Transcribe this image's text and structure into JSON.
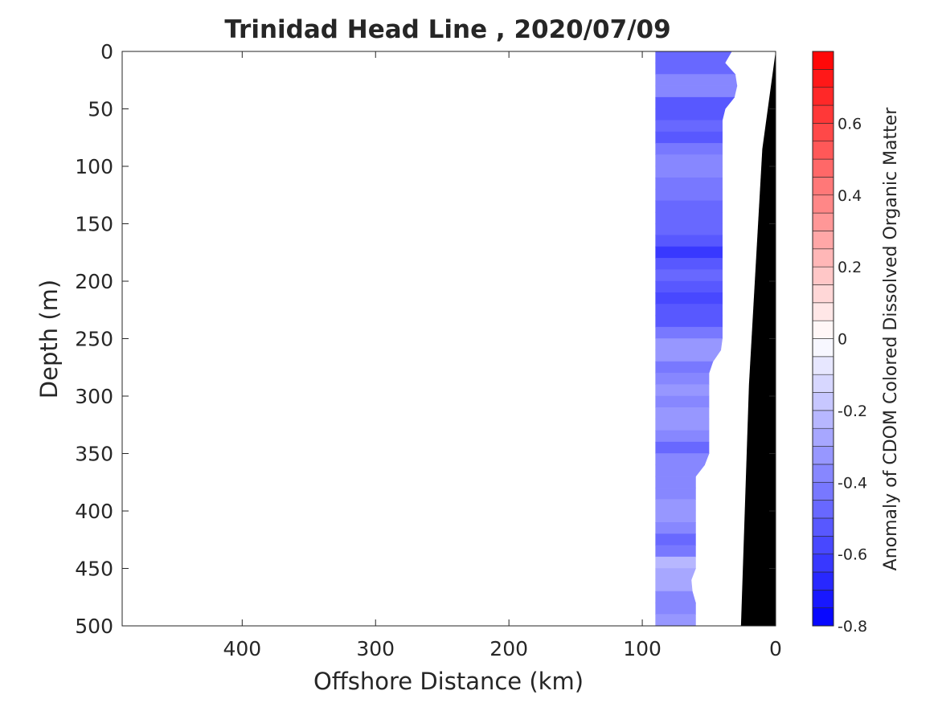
{
  "chart_data": {
    "type": "heatmap",
    "title": "Trinidad Head Line , 2020/07/09",
    "xlabel": "Offshore Distance (km)",
    "ylabel": "Depth (m)",
    "colorbar_label": "Anomaly of CDOM Colored Dissolved Organic Matter",
    "xlim": [
      490,
      0
    ],
    "ylim": [
      0,
      500
    ],
    "x_ticks": [
      400,
      300,
      200,
      100,
      0
    ],
    "y_ticks": [
      0,
      50,
      100,
      150,
      200,
      250,
      300,
      350,
      400,
      450,
      500
    ],
    "colorbar_range": [
      -0.8,
      0.8
    ],
    "colorbar_ticks": [
      0.6,
      0.4,
      0.2,
      0,
      -0.2,
      -0.4,
      -0.6,
      -0.8
    ],
    "colorbar_levels": 32,
    "colors": {
      "negative": "#0000ff",
      "positive": "#ff0000",
      "zero": "#ffffff",
      "bathymetry": "#000000"
    },
    "data_region_boundary": [
      {
        "depth": 0,
        "x_offshore": 90,
        "x_onshore": 33
      },
      {
        "depth": 10,
        "x_offshore": 90,
        "x_onshore": 38
      },
      {
        "depth": 15,
        "x_offshore": 90,
        "x_onshore": 31
      },
      {
        "depth": 30,
        "x_offshore": 90,
        "x_onshore": 29
      },
      {
        "depth": 35,
        "x_offshore": 90,
        "x_onshore": 38
      },
      {
        "depth": 40,
        "x_offshore": 90,
        "x_onshore": 31
      },
      {
        "depth": 48,
        "x_offshore": 90,
        "x_onshore": 37
      },
      {
        "depth": 55,
        "x_offshore": 90,
        "x_onshore": 40
      },
      {
        "depth": 258,
        "x_offshore": 90,
        "x_onshore": 40
      },
      {
        "depth": 275,
        "x_offshore": 90,
        "x_onshore": 50
      },
      {
        "depth": 355,
        "x_offshore": 90,
        "x_onshore": 50
      },
      {
        "depth": 370,
        "x_offshore": 90,
        "x_onshore": 60
      },
      {
        "depth": 450,
        "x_offshore": 90,
        "x_onshore": 60
      },
      {
        "depth": 465,
        "x_offshore": 90,
        "x_onshore": 65
      },
      {
        "depth": 475,
        "x_offshore": 90,
        "x_onshore": 60
      },
      {
        "depth": 500,
        "x_offshore": 90,
        "x_onshore": 60
      }
    ],
    "anomaly_profile": [
      {
        "depth": 0,
        "value": -0.45
      },
      {
        "depth": 10,
        "value": -0.55
      },
      {
        "depth": 20,
        "value": -0.4
      },
      {
        "depth": 30,
        "value": -0.35
      },
      {
        "depth": 40,
        "value": -0.45
      },
      {
        "depth": 50,
        "value": -0.6
      },
      {
        "depth": 60,
        "value": -0.45
      },
      {
        "depth": 70,
        "value": -0.55
      },
      {
        "depth": 80,
        "value": -0.5
      },
      {
        "depth": 90,
        "value": -0.4
      },
      {
        "depth": 100,
        "value": -0.35
      },
      {
        "depth": 110,
        "value": -0.45
      },
      {
        "depth": 120,
        "value": -0.4
      },
      {
        "depth": 130,
        "value": -0.45
      },
      {
        "depth": 140,
        "value": -0.5
      },
      {
        "depth": 150,
        "value": -0.45
      },
      {
        "depth": 160,
        "value": -0.5
      },
      {
        "depth": 170,
        "value": -0.55
      },
      {
        "depth": 180,
        "value": -0.65
      },
      {
        "depth": 190,
        "value": -0.45
      },
      {
        "depth": 200,
        "value": -0.5
      },
      {
        "depth": 210,
        "value": -0.55
      },
      {
        "depth": 220,
        "value": -0.6
      },
      {
        "depth": 230,
        "value": -0.5
      },
      {
        "depth": 240,
        "value": -0.55
      },
      {
        "depth": 250,
        "value": -0.35
      },
      {
        "depth": 260,
        "value": -0.3
      },
      {
        "depth": 270,
        "value": -0.35
      },
      {
        "depth": 280,
        "value": -0.5
      },
      {
        "depth": 290,
        "value": -0.3
      },
      {
        "depth": 300,
        "value": -0.35
      },
      {
        "depth": 310,
        "value": -0.4
      },
      {
        "depth": 320,
        "value": -0.3
      },
      {
        "depth": 330,
        "value": -0.35
      },
      {
        "depth": 340,
        "value": -0.45
      },
      {
        "depth": 350,
        "value": -0.5
      },
      {
        "depth": 360,
        "value": -0.3
      },
      {
        "depth": 370,
        "value": -0.45
      },
      {
        "depth": 380,
        "value": -0.35
      },
      {
        "depth": 390,
        "value": -0.4
      },
      {
        "depth": 400,
        "value": -0.3
      },
      {
        "depth": 410,
        "value": -0.35
      },
      {
        "depth": 420,
        "value": -0.4
      },
      {
        "depth": 430,
        "value": -0.6
      },
      {
        "depth": 440,
        "value": -0.3
      },
      {
        "depth": 450,
        "value": -0.2
      },
      {
        "depth": 460,
        "value": -0.35
      },
      {
        "depth": 470,
        "value": -0.25
      },
      {
        "depth": 480,
        "value": -0.5
      },
      {
        "depth": 490,
        "value": -0.3
      },
      {
        "depth": 500,
        "value": -0.35
      }
    ],
    "bathymetry": [
      {
        "x": 0,
        "depth": 0
      },
      {
        "x": 10,
        "depth": 85
      },
      {
        "x": 20,
        "depth": 290
      },
      {
        "x": 26,
        "depth": 500
      }
    ]
  }
}
